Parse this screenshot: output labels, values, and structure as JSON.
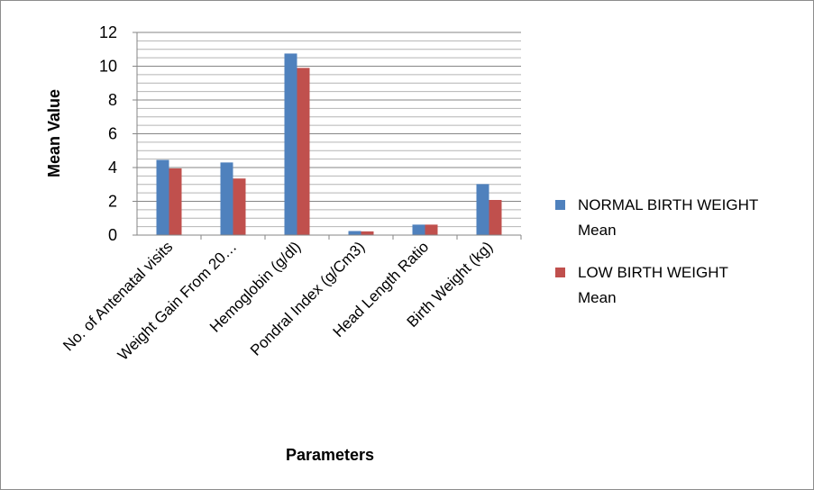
{
  "chart_data": {
    "type": "bar",
    "categories": [
      "No. of Antenatal visits",
      "Weight Gain From 20…",
      "Hemoglobin (g/dl)",
      "Pondral Index (g/Cm3)",
      "Head Length Ratio",
      "Birth Weight (kg)"
    ],
    "series": [
      {
        "name": "NORMAL BIRTH WEIGHT Mean",
        "legend_lines": [
          "NORMAL BIRTH WEIGHT",
          "Mean"
        ],
        "color": "#4F81BD",
        "values": [
          4.45,
          4.3,
          10.75,
          0.24,
          0.62,
          3.02
        ]
      },
      {
        "name": "LOW BIRTH WEIGHT Mean",
        "legend_lines": [
          "LOW BIRTH WEIGHT",
          "Mean"
        ],
        "color": "#C0504D",
        "values": [
          3.95,
          3.35,
          9.9,
          0.22,
          0.62,
          2.08
        ]
      }
    ],
    "xlabel": "Parameters",
    "ylabel": "Mean Value",
    "ylim": [
      0,
      12
    ],
    "y_major_ticks": [
      0,
      2,
      4,
      6,
      8,
      10,
      12
    ],
    "minor_gridline_step": 0.5,
    "grid": true,
    "legend_position": "right"
  }
}
